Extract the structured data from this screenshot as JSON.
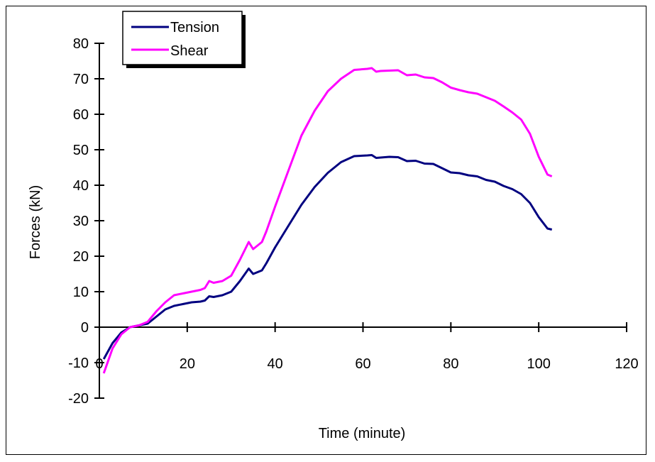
{
  "chart_data": {
    "type": "line",
    "title": "",
    "xlabel": "Time (minute)",
    "ylabel": "Forces (kN)",
    "xlim": [
      0,
      120
    ],
    "ylim": [
      -20,
      80
    ],
    "xticks": [
      0,
      20,
      40,
      60,
      80,
      100,
      120
    ],
    "yticks": [
      -20,
      -10,
      0,
      10,
      20,
      30,
      40,
      50,
      60,
      70,
      80
    ],
    "grid": false,
    "legend_position": "top-left",
    "series": [
      {
        "name": "Tension",
        "color": "#000080",
        "x": [
          1,
          3,
          5,
          7,
          9,
          11,
          13,
          15,
          17,
          19,
          21,
          23,
          24,
          25,
          26,
          28,
          30,
          32,
          34,
          35,
          37,
          38,
          40,
          43,
          46,
          49,
          52,
          55,
          58,
          61,
          62,
          63,
          64,
          66,
          68,
          70,
          72,
          74,
          76,
          78,
          80,
          82,
          84,
          86,
          88,
          90,
          92,
          94,
          96,
          98,
          100,
          102,
          103
        ],
        "y": [
          -9,
          -4.5,
          -1.5,
          0,
          0.5,
          1,
          3,
          5,
          6,
          6.5,
          7,
          7.2,
          7.5,
          8.7,
          8.5,
          9,
          10,
          13,
          16.5,
          15,
          16,
          18,
          22.5,
          28.5,
          34.5,
          39.5,
          43.5,
          46.5,
          48.2,
          48.4,
          48.5,
          47.7,
          47.8,
          48,
          47.9,
          46.8,
          46.9,
          46.1,
          46,
          44.8,
          43.6,
          43.4,
          42.8,
          42.5,
          41.5,
          41,
          39.8,
          38.9,
          37.5,
          35,
          31,
          27.8,
          27.5
        ]
      },
      {
        "name": "Shear",
        "color": "#ff00ff",
        "x": [
          1,
          3,
          5,
          7,
          9,
          11,
          13,
          15,
          17,
          19,
          21,
          23,
          24,
          25,
          26,
          28,
          30,
          32,
          34,
          35,
          37,
          38,
          40,
          43,
          46,
          49,
          52,
          55,
          58,
          61,
          62,
          63,
          64,
          66,
          68,
          70,
          72,
          74,
          76,
          78,
          80,
          82,
          84,
          86,
          88,
          90,
          92,
          94,
          96,
          98,
          100,
          102,
          103
        ],
        "y": [
          -13,
          -6,
          -2,
          0,
          0.5,
          1.5,
          4.5,
          7,
          9,
          9.5,
          10,
          10.5,
          11,
          13,
          12.5,
          13,
          14.5,
          19,
          24,
          22,
          24,
          27,
          34,
          44,
          54,
          61,
          66.5,
          70,
          72.5,
          72.8,
          73,
          72,
          72.2,
          72.3,
          72.4,
          71,
          71.2,
          70.4,
          70.2,
          69,
          67.5,
          66.8,
          66.2,
          65.8,
          64.8,
          63.8,
          62.2,
          60.5,
          58.5,
          54.5,
          48,
          43,
          42.5
        ]
      }
    ]
  }
}
